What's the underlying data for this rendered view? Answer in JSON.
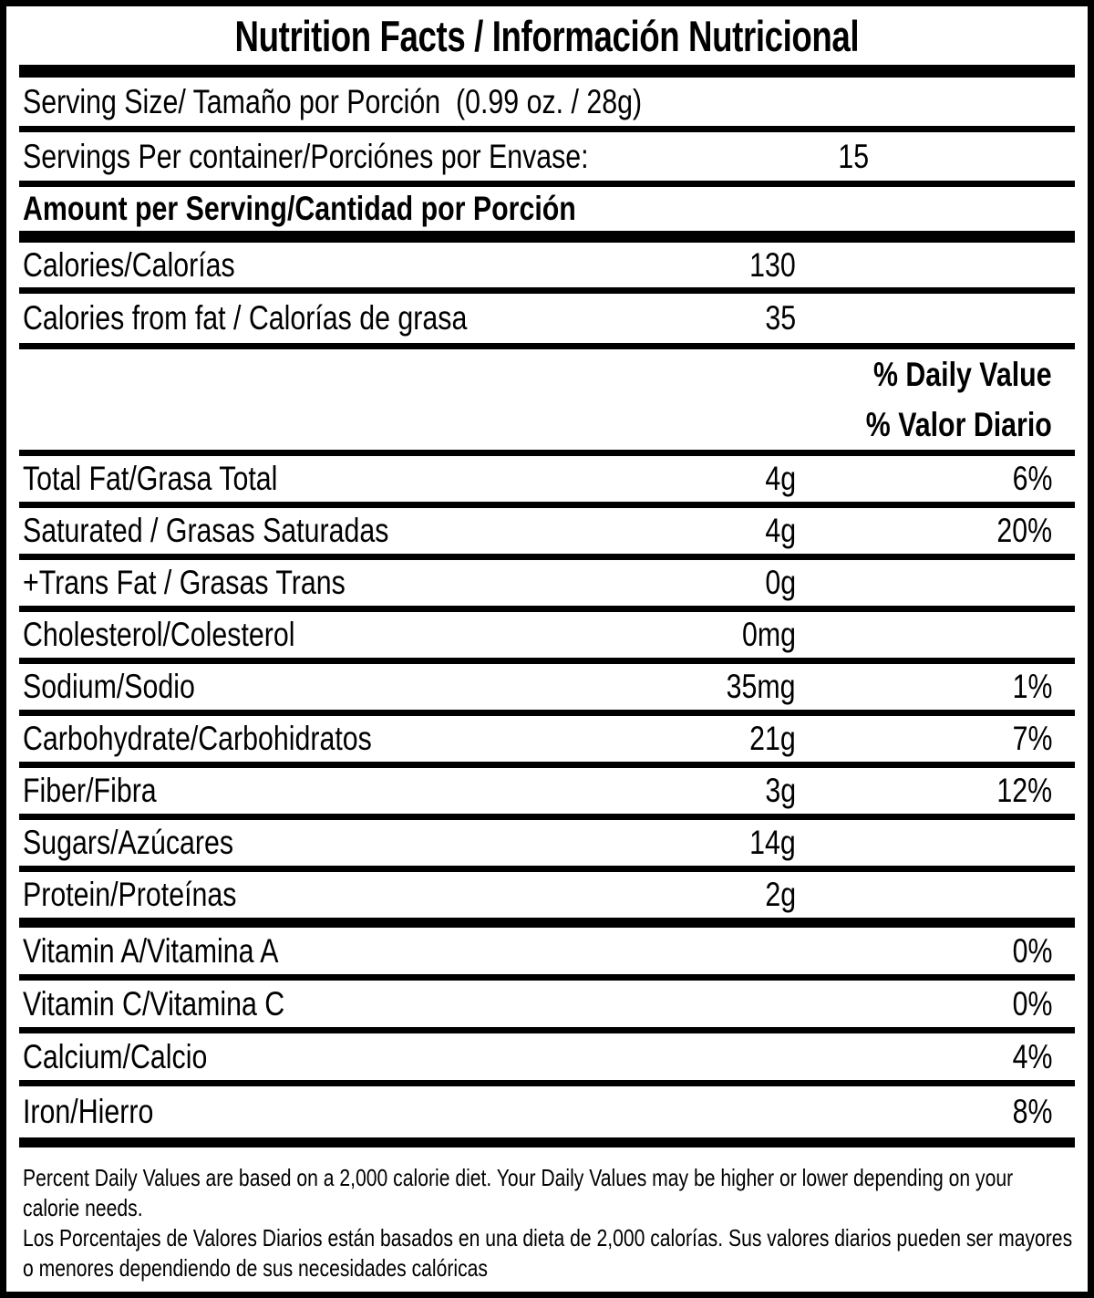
{
  "title": "Nutrition Facts / Información Nutricional",
  "serving_size": {
    "text": "Serving Size/ Tamaño por Porción  (0.99 oz. / 28g)"
  },
  "servings_per_container": {
    "label": "Servings Per container/Porciónes por Envase:",
    "value": "15"
  },
  "amount_per_serving_header": "Amount per Serving/Cantidad por Porción",
  "calories": {
    "label": "Calories/Calorías",
    "value": "130"
  },
  "calories_from_fat": {
    "label": "Calories from fat / Calorías de grasa",
    "value": "35"
  },
  "daily_value_header": {
    "en": "% Daily Value",
    "es": "% Valor Diario"
  },
  "nutrients": [
    {
      "label": "Total Fat/Grasa Total",
      "amount": "4g",
      "dv": "6%"
    },
    {
      "label": "Saturated / Grasas Saturadas",
      "amount": "4g",
      "dv": "20%"
    },
    {
      "label": "+Trans Fat / Grasas Trans",
      "amount": "0g",
      "dv": ""
    },
    {
      "label": "Cholesterol/Colesterol",
      "amount": "0mg",
      "dv": ""
    },
    {
      "label": "Sodium/Sodio",
      "amount": "35mg",
      "dv": "1%"
    },
    {
      "label": "Carbohydrate/Carbohidratos",
      "amount": "21g",
      "dv": "7%"
    },
    {
      "label": "Fiber/Fibra",
      "amount": "3g",
      "dv": "12%"
    },
    {
      "label": "Sugars/Azúcares",
      "amount": "14g",
      "dv": ""
    },
    {
      "label": "Protein/Proteínas",
      "amount": "2g",
      "dv": ""
    }
  ],
  "vitamins": [
    {
      "label": "Vitamin A/Vitamina A",
      "dv": "0%"
    },
    {
      "label": "Vitamin C/Vitamina C",
      "dv": "0%"
    },
    {
      "label": "Calcium/Calcio",
      "dv": "4%"
    },
    {
      "label": "Iron/Hierro",
      "dv": "8%"
    }
  ],
  "footnotes": {
    "en": "Percent Daily Values are based on a 2,000 calorie diet. Your Daily Values may be higher or lower depending on your calorie needs.",
    "es": "Los Porcentajes de Valores Diarios están basados en una dieta de 2,000 calorías. Sus valores diarios pueden ser mayores o menores dependiendo de sus necesidades calóricas"
  },
  "colors": {
    "ink": "#000000",
    "background": "#ffffff"
  }
}
